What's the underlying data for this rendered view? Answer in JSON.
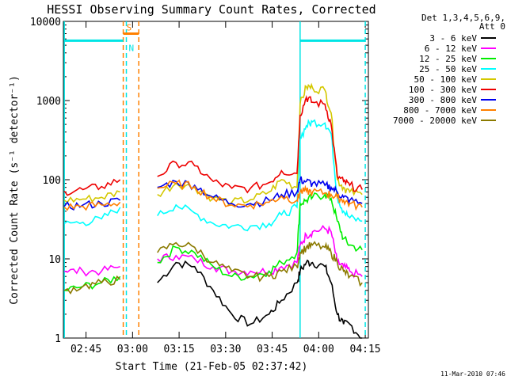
{
  "chart_data": {
    "type": "line",
    "title": "HESSI Observing Summary Count Rates, Corrected",
    "xlabel": "Start Time (21-Feb-05 02:37:42)",
    "ylabel": "Corrected Count Rate (s⁻¹ detector⁻¹)",
    "yscale": "log",
    "ylim": [
      1,
      10000
    ],
    "xlim": [
      "02:37:42",
      "04:16:00"
    ],
    "x_ticks": [
      "02:45",
      "03:00",
      "03:15",
      "03:30",
      "03:45",
      "04:00",
      "04:15"
    ],
    "y_ticks": [
      "1",
      "10",
      "100",
      "1000",
      "10000"
    ],
    "legend": {
      "header": [
        "Det 1,3,4,5,6,9,",
        "Att 0"
      ],
      "position": "right",
      "entries": [
        {
          "label": "3 - 6 keV",
          "color": "#000000"
        },
        {
          "label": "6 - 12 keV",
          "color": "#ff00ff"
        },
        {
          "label": "12 - 25 keV",
          "color": "#00ee00"
        },
        {
          "label": "25 - 50 keV",
          "color": "#00ffff"
        },
        {
          "label": "50 - 100 keV",
          "color": "#d4c800"
        },
        {
          "label": "100 - 300 keV",
          "color": "#ee0000"
        },
        {
          "label": "300 - 800 keV",
          "color": "#0000ee"
        },
        {
          "label": "800 - 7000 keV",
          "color": "#ff8000"
        },
        {
          "label": "7000 - 20000 keV",
          "color": "#8b7a00"
        }
      ]
    },
    "x": [
      "02:38",
      "02:44",
      "02:50",
      "02:56",
      "03:02",
      "03:08",
      "03:14",
      "03:20",
      "03:26",
      "03:32",
      "03:38",
      "03:44",
      "03:48",
      "03:53",
      "03:54",
      "03:56",
      "03:58",
      "04:02",
      "04:04",
      "04:06",
      "04:08",
      "04:10",
      "04:14"
    ],
    "series": [
      {
        "name": "3 - 6 keV",
        "values": [
          null,
          null,
          null,
          null,
          null,
          5,
          9,
          8,
          4,
          2,
          1.5,
          2,
          3,
          5,
          7,
          9,
          9,
          8,
          5,
          2,
          1.5,
          1.5,
          1
        ]
      },
      {
        "name": "6 - 12 keV",
        "values": [
          7,
          7,
          7,
          8,
          null,
          10,
          11,
          10,
          8,
          7,
          7,
          7,
          8,
          9,
          15,
          20,
          22,
          24,
          22,
          9,
          8,
          7,
          6
        ]
      },
      {
        "name": "12 - 25 keV",
        "values": [
          4,
          4.5,
          5,
          6,
          null,
          9,
          14,
          12,
          8,
          6,
          6,
          7,
          9,
          12,
          50,
          55,
          60,
          65,
          58,
          30,
          18,
          15,
          13
        ]
      },
      {
        "name": "25 - 50 keV",
        "values": [
          28,
          29,
          32,
          45,
          null,
          35,
          48,
          38,
          28,
          26,
          26,
          28,
          36,
          45,
          330,
          480,
          540,
          520,
          380,
          60,
          40,
          33,
          30
        ]
      },
      {
        "name": "50 - 100 keV",
        "values": [
          55,
          57,
          60,
          70,
          null,
          65,
          90,
          80,
          58,
          52,
          56,
          70,
          100,
          80,
          900,
          1500,
          1450,
          1350,
          700,
          100,
          80,
          70,
          65
        ]
      },
      {
        "name": "100 - 300 keV",
        "values": [
          72,
          75,
          82,
          100,
          null,
          110,
          165,
          150,
          95,
          78,
          78,
          92,
          130,
          120,
          650,
          1100,
          950,
          900,
          500,
          110,
          95,
          85,
          75
        ]
      },
      {
        "name": "300 - 800 keV",
        "values": [
          46,
          48,
          50,
          55,
          null,
          80,
          95,
          85,
          60,
          50,
          50,
          55,
          65,
          70,
          100,
          95,
          90,
          85,
          80,
          70,
          60,
          55,
          50
        ]
      },
      {
        "name": "800 - 7000 keV",
        "values": [
          45,
          46,
          48,
          52,
          null,
          78,
          90,
          82,
          58,
          48,
          48,
          52,
          62,
          55,
          70,
          72,
          70,
          68,
          65,
          60,
          55,
          50,
          45
        ]
      },
      {
        "name": "7000 - 20000 keV",
        "values": [
          4,
          4.5,
          5,
          5.5,
          null,
          12,
          16,
          14,
          9,
          7,
          6,
          6,
          7,
          8,
          12,
          14,
          15,
          14,
          12,
          9,
          7,
          6,
          5
        ]
      }
    ],
    "vertical_markers": [
      {
        "time": "02:38",
        "color": "#00e5e5",
        "style": "solid"
      },
      {
        "time": "02:57",
        "color": "#ff8000",
        "style": "dashed"
      },
      {
        "time": "02:58",
        "color": "#00e5e5",
        "style": "dashed"
      },
      {
        "time": "03:02",
        "color": "#ff8000",
        "style": "dashed"
      },
      {
        "time": "03:54",
        "color": "#00e5e5",
        "style": "solid"
      },
      {
        "time": "04:15",
        "color": "#00e5e5",
        "style": "dashed"
      }
    ],
    "horizontal_flags": [
      {
        "label": "",
        "color": "#00e5e5",
        "from": "02:38",
        "to": "02:57",
        "y": 5700
      },
      {
        "label": "S",
        "color": "#ff8000",
        "from": "02:57",
        "to": "03:02",
        "y": 7000
      },
      {
        "label": "N",
        "color": "#00e5e5",
        "from": "02:58",
        "to": "02:58",
        "y": 5700
      },
      {
        "label": "",
        "color": "#00e5e5",
        "from": "03:54",
        "to": "04:15",
        "y": 5700
      }
    ],
    "footer": "11-Mar-2010 07:46"
  }
}
